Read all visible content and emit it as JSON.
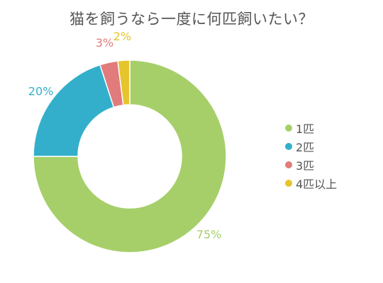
{
  "chart_data": {
    "type": "pie",
    "title": "猫を飼うなら一度に何匹飼いたい？",
    "categories": [
      "1匹",
      "2匹",
      "3匹",
      "4匹以上"
    ],
    "values": [
      75,
      20,
      3,
      2
    ],
    "labels": [
      "75%",
      "20%",
      "3%",
      "2%"
    ],
    "colors": [
      "#a6cf6a",
      "#34afcb",
      "#e27b7b",
      "#e6c42c"
    ],
    "donut": true,
    "legend_position": "right"
  }
}
